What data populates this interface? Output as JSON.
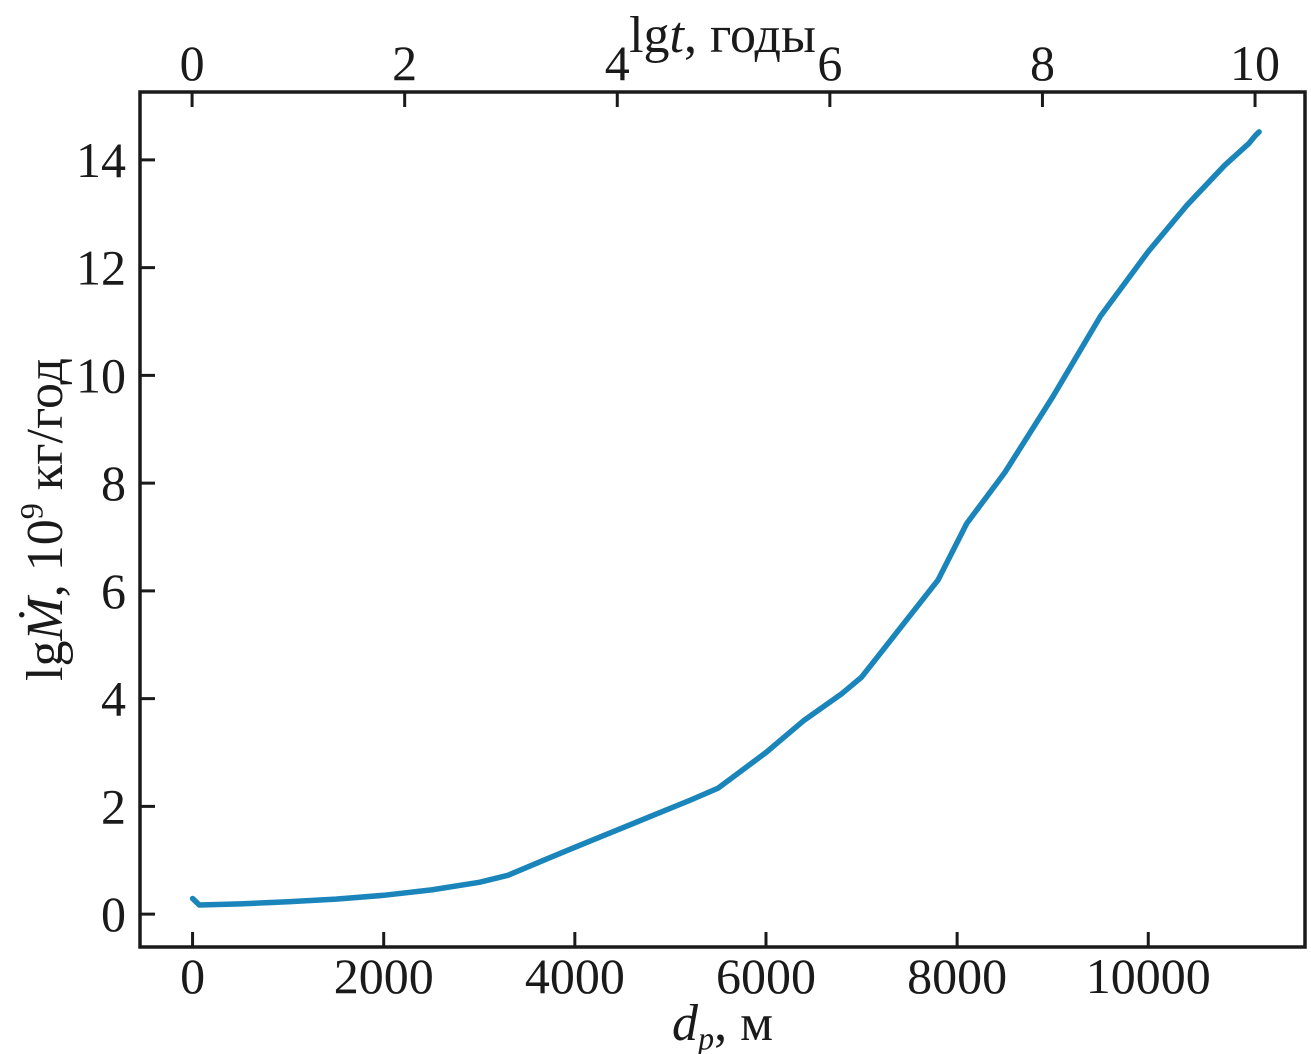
{
  "figure": {
    "background": "#ffffff",
    "axis_color": "#1a1a1a",
    "curve_color": "#1a85bb"
  },
  "chart_data": {
    "type": "line",
    "title": "",
    "grid": false,
    "legend": false,
    "top_axis": {
      "label": "lgt, годы",
      "label_parts": [
        {
          "t": "lg"
        },
        {
          "t": "t",
          "italic": true
        },
        {
          "t": ", годы"
        }
      ],
      "ticks": [
        0,
        2,
        4,
        6,
        8,
        10
      ],
      "range": [
        -0.49,
        10.47
      ]
    },
    "bottom_axis": {
      "label": "dp, м",
      "label_parts": [
        {
          "t": "d",
          "italic": true
        },
        {
          "t": "p",
          "italic": true,
          "sub": true
        },
        {
          "t": ", м"
        }
      ],
      "ticks": [
        0,
        2000,
        4000,
        6000,
        8000,
        10000
      ],
      "range": [
        -550,
        11640
      ]
    },
    "left_axis": {
      "label": "lgṀ, 10⁹ кг/год",
      "label_parts": [
        {
          "t": "lg"
        },
        {
          "t": "Ṁ",
          "italic": true
        },
        {
          "t": ", 10"
        },
        {
          "t": "9",
          "sup": true
        },
        {
          "t": " кг/год"
        }
      ],
      "ticks": [
        0,
        2,
        4,
        6,
        8,
        10,
        12,
        14
      ],
      "range": [
        -0.61,
        15.26
      ]
    },
    "series": [
      {
        "name": "lgM vs dp",
        "color": "#1a85bb",
        "points": [
          [
            0,
            0.29
          ],
          [
            70,
            0.17
          ],
          [
            500,
            0.19
          ],
          [
            1000,
            0.23
          ],
          [
            1500,
            0.28
          ],
          [
            2000,
            0.35
          ],
          [
            2500,
            0.45
          ],
          [
            3000,
            0.59
          ],
          [
            3300,
            0.72
          ],
          [
            3700,
            1.02
          ],
          [
            4000,
            1.24
          ],
          [
            4400,
            1.53
          ],
          [
            4800,
            1.82
          ],
          [
            5200,
            2.11
          ],
          [
            5500,
            2.34
          ],
          [
            6000,
            3.0
          ],
          [
            6400,
            3.6
          ],
          [
            6800,
            4.1
          ],
          [
            7000,
            4.4
          ],
          [
            7400,
            5.3
          ],
          [
            7800,
            6.2
          ],
          [
            8100,
            7.25
          ],
          [
            8500,
            8.2
          ],
          [
            9000,
            9.6
          ],
          [
            9500,
            11.1
          ],
          [
            10000,
            12.3
          ],
          [
            10400,
            13.15
          ],
          [
            10800,
            13.9
          ],
          [
            11050,
            14.3
          ],
          [
            11120,
            14.45
          ],
          [
            11160,
            14.52
          ]
        ]
      }
    ]
  }
}
